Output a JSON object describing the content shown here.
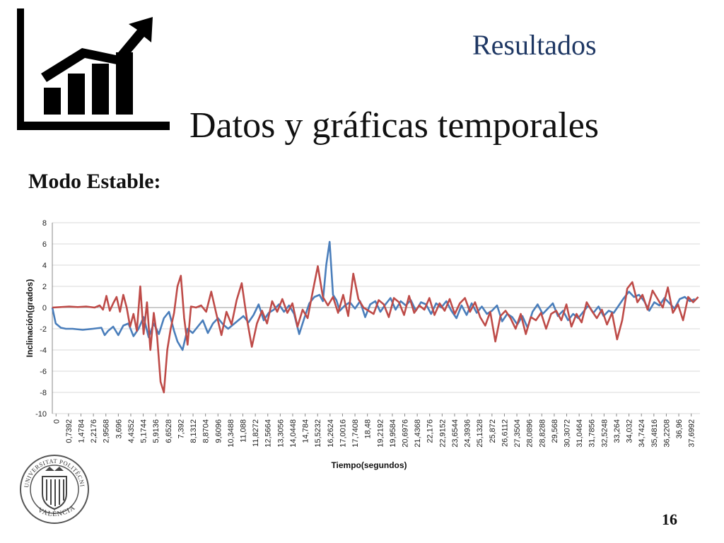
{
  "slide": {
    "section": "Resultados",
    "title": "Datos y gráficas temporales",
    "subtitle": "Modo Estable:",
    "page_number": "16",
    "seal_text": "UNIVERSITAT POLITÈCNICA · VALÈNCIA"
  },
  "icons": {
    "header": "chart-growth-icon",
    "seal": "university-seal-icon"
  },
  "chart_data": {
    "type": "line",
    "xlabel": "Tiempo(segundos)",
    "ylabel": "Inclinación(grados)",
    "ylim": [
      -10,
      8
    ],
    "yticks": [
      8,
      6,
      4,
      2,
      0,
      -2,
      -4,
      -6,
      -8,
      -10
    ],
    "xlim": [
      0,
      38.3
    ],
    "xtick_labels": [
      "0",
      "0,7392",
      "1,4784",
      "2,2176",
      "2,9568",
      "3,696",
      "4,4352",
      "5,1744",
      "5,9136",
      "6,6528",
      "7,392",
      "8,1312",
      "8,8704",
      "9,6096",
      "10,3488",
      "11,088",
      "11,8272",
      "12,5664",
      "13,3056",
      "14,0448",
      "14,784",
      "15,5232",
      "16,2624",
      "17,0016",
      "17,7408",
      "18,48",
      "19,2192",
      "19,9584",
      "20,6976",
      "21,4368",
      "22,176",
      "22,9152",
      "23,6544",
      "24,3936",
      "25,1328",
      "25,872",
      "26,6112",
      "27,3504",
      "28,0896",
      "28,8288",
      "29,568",
      "30,3072",
      "31,0464",
      "31,7856",
      "32,5248",
      "33,264",
      "34,032",
      "34,7424",
      "35,4816",
      "36,2208",
      "36,96",
      "37,6992"
    ],
    "grid": true,
    "legend": "none",
    "series": [
      {
        "color": "#4a7ebb",
        "x": [
          0,
          0.2,
          0.5,
          0.8,
          1.2,
          1.8,
          2.4,
          2.9,
          3.1,
          3.3,
          3.6,
          3.9,
          4.2,
          4.5,
          4.8,
          5.1,
          5.4,
          5.7,
          6.0,
          6.3,
          6.6,
          6.9,
          7.2,
          7.4,
          7.7,
          8.0,
          8.3,
          8.6,
          8.9,
          9.2,
          9.5,
          9.8,
          10.1,
          10.4,
          10.7,
          11.0,
          11.3,
          11.6,
          11.9,
          12.2,
          12.5,
          12.8,
          13.1,
          13.4,
          13.7,
          14.0,
          14.3,
          14.6,
          14.9,
          15.2,
          15.5,
          15.8,
          16.0,
          16.2,
          16.4,
          16.6,
          16.8,
          17.0,
          17.3,
          17.6,
          17.9,
          18.2,
          18.5,
          18.8,
          19.1,
          19.4,
          19.7,
          20.0,
          20.3,
          20.6,
          20.9,
          21.2,
          21.5,
          21.8,
          22.1,
          22.4,
          22.7,
          23.0,
          23.3,
          23.6,
          23.9,
          24.2,
          24.5,
          24.8,
          25.1,
          25.4,
          25.7,
          26.0,
          26.3,
          26.6,
          26.9,
          27.2,
          27.5,
          27.8,
          28.1,
          28.4,
          28.7,
          29.0,
          29.3,
          29.6,
          29.9,
          30.2,
          30.5,
          30.8,
          31.1,
          31.4,
          31.7,
          32.0,
          32.3,
          32.6,
          32.9,
          33.2,
          33.5,
          33.8,
          34.1,
          34.4,
          34.7,
          35.0,
          35.3,
          35.6,
          35.9,
          36.2,
          36.5,
          36.8,
          37.1,
          37.4,
          37.7,
          38.0
        ],
        "y": [
          0,
          -1.5,
          -1.9,
          -2.0,
          -2.0,
          -2.1,
          -2.0,
          -1.9,
          -2.6,
          -2.2,
          -1.8,
          -2.6,
          -1.7,
          -1.5,
          -2.7,
          -2.0,
          -0.9,
          -2.8,
          -1.5,
          -2.5,
          -1.0,
          -0.4,
          -2.2,
          -3.2,
          -4.0,
          -2.0,
          -2.4,
          -1.8,
          -1.2,
          -2.4,
          -1.5,
          -1.0,
          -1.6,
          -2.0,
          -1.6,
          -1.2,
          -0.8,
          -1.4,
          -0.7,
          0.3,
          -1.2,
          -0.5,
          -0.2,
          0.3,
          -0.4,
          0.2,
          -0.6,
          -2.5,
          -1.0,
          0.4,
          1.0,
          1.2,
          0.6,
          4.0,
          6.2,
          1.2,
          0.7,
          -0.3,
          0.2,
          0.5,
          -0.1,
          0.6,
          -0.9,
          0.3,
          0.6,
          -0.4,
          0.3,
          0.9,
          -0.2,
          0.6,
          0.2,
          0.7,
          -0.3,
          0.5,
          0.3,
          -0.6,
          0.4,
          0.0,
          0.6,
          -0.3,
          -1.0,
          0.2,
          -0.7,
          0.4,
          -0.5,
          0.1,
          -0.6,
          -0.3,
          0.2,
          -1.3,
          -0.6,
          -0.9,
          -1.6,
          -0.8,
          -1.9,
          -0.4,
          0.3,
          -0.6,
          -0.1,
          0.4,
          -0.8,
          -0.3,
          -1.2,
          -0.6,
          -1.0,
          -0.4,
          0.2,
          -0.5,
          0.1,
          -0.8,
          -0.3,
          -0.5,
          0.2,
          0.9,
          1.5,
          1.0,
          1.2,
          0.6,
          -0.3,
          0.5,
          0.2,
          0.9,
          0.4,
          -0.1,
          0.8,
          1.0,
          0.6,
          0.8
        ]
      },
      {
        "color": "#be4b48",
        "x": [
          0,
          0.5,
          1.0,
          1.5,
          2.0,
          2.5,
          2.8,
          3.0,
          3.2,
          3.4,
          3.6,
          3.8,
          4.0,
          4.2,
          4.4,
          4.6,
          4.8,
          5.0,
          5.2,
          5.4,
          5.6,
          5.8,
          6.0,
          6.2,
          6.4,
          6.6,
          6.8,
          7.0,
          7.2,
          7.4,
          7.6,
          7.8,
          8.0,
          8.2,
          8.5,
          8.8,
          9.1,
          9.4,
          9.7,
          10.0,
          10.3,
          10.6,
          10.9,
          11.2,
          11.5,
          11.8,
          12.1,
          12.4,
          12.7,
          13.0,
          13.3,
          13.6,
          13.9,
          14.2,
          14.5,
          14.8,
          15.1,
          15.4,
          15.7,
          16.0,
          16.3,
          16.6,
          16.9,
          17.2,
          17.5,
          17.8,
          18.1,
          18.4,
          18.7,
          19.0,
          19.3,
          19.6,
          19.9,
          20.2,
          20.5,
          20.8,
          21.1,
          21.4,
          21.7,
          22.0,
          22.3,
          22.6,
          22.9,
          23.2,
          23.5,
          23.8,
          24.1,
          24.4,
          24.7,
          25.0,
          25.3,
          25.6,
          25.9,
          26.2,
          26.5,
          26.8,
          27.1,
          27.4,
          27.7,
          28.0,
          28.3,
          28.6,
          28.9,
          29.2,
          29.5,
          29.8,
          30.1,
          30.4,
          30.7,
          31.0,
          31.3,
          31.6,
          31.9,
          32.2,
          32.5,
          32.8,
          33.1,
          33.4,
          33.7,
          34.0,
          34.3,
          34.6,
          34.9,
          35.2,
          35.5,
          35.8,
          36.1,
          36.4,
          36.7,
          37.0,
          37.3,
          37.6,
          37.9,
          38.2
        ],
        "y": [
          0,
          0.05,
          0.1,
          0.05,
          0.1,
          0.0,
          0.2,
          -0.2,
          1.1,
          -0.3,
          0.4,
          1.0,
          -0.4,
          1.2,
          0.0,
          -1.8,
          -0.6,
          -2.2,
          2.0,
          -2.5,
          0.5,
          -4.0,
          -0.5,
          -2.8,
          -7.0,
          -8.0,
          -4.0,
          -2.0,
          -0.5,
          2.0,
          3.0,
          -1.0,
          -3.5,
          0.1,
          0.0,
          0.2,
          -0.4,
          1.5,
          -0.6,
          -2.6,
          -0.4,
          -1.6,
          0.7,
          2.3,
          -1.0,
          -3.7,
          -1.5,
          -0.3,
          -1.5,
          0.6,
          -0.4,
          0.8,
          -0.5,
          0.4,
          -1.8,
          -0.2,
          -1.0,
          1.5,
          3.9,
          1.0,
          0.2,
          1.0,
          -0.5,
          1.2,
          -0.8,
          3.2,
          0.8,
          0.0,
          -0.3,
          -0.6,
          0.7,
          0.3,
          -0.9,
          0.9,
          0.5,
          -0.7,
          1.1,
          -0.5,
          0.2,
          -0.2,
          0.9,
          -0.7,
          0.4,
          -0.3,
          0.8,
          -0.6,
          0.4,
          0.9,
          -0.4,
          0.5,
          -0.9,
          -1.7,
          -0.4,
          -3.2,
          -0.8,
          -0.3,
          -1.0,
          -2.0,
          -0.6,
          -2.5,
          -0.9,
          -1.2,
          -0.5,
          -2.0,
          -0.6,
          -0.3,
          -1.2,
          0.3,
          -1.8,
          -0.6,
          -1.4,
          0.5,
          -0.3,
          -1.0,
          -0.2,
          -1.6,
          -0.5,
          -3.0,
          -1.2,
          1.8,
          2.4,
          0.5,
          1.2,
          -0.2,
          1.6,
          0.8,
          0.0,
          1.9,
          -0.5,
          0.3,
          -1.2,
          1.0,
          0.5,
          1.0
        ]
      }
    ]
  }
}
